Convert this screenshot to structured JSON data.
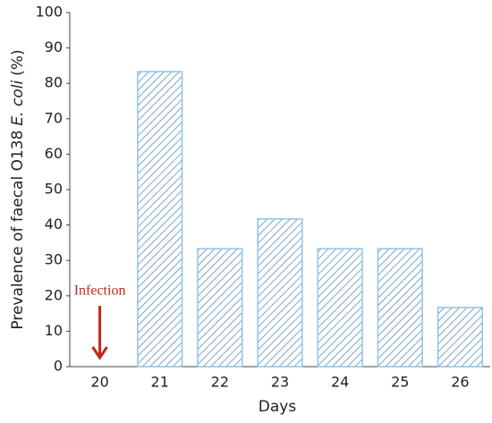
{
  "chart_data": {
    "type": "bar",
    "ylabel": [
      "Prevalence of faecal O138",
      "E. coli",
      "(%)"
    ],
    "xlabel": "Days",
    "categories": [
      "20",
      "21",
      "22",
      "23",
      "24",
      "25",
      "26"
    ],
    "values": [
      0,
      83.3,
      33.3,
      41.7,
      33.3,
      33.3,
      16.7
    ],
    "color": "#5b8fb8",
    "edgecolor": "#8cc4ea",
    "ylim": [
      0,
      100
    ],
    "yticks": [
      0,
      10,
      20,
      30,
      40,
      50,
      60,
      70,
      80,
      90,
      100
    ],
    "annotation": {
      "text": "Infection",
      "category": 0,
      "color": "#c0281e"
    }
  }
}
